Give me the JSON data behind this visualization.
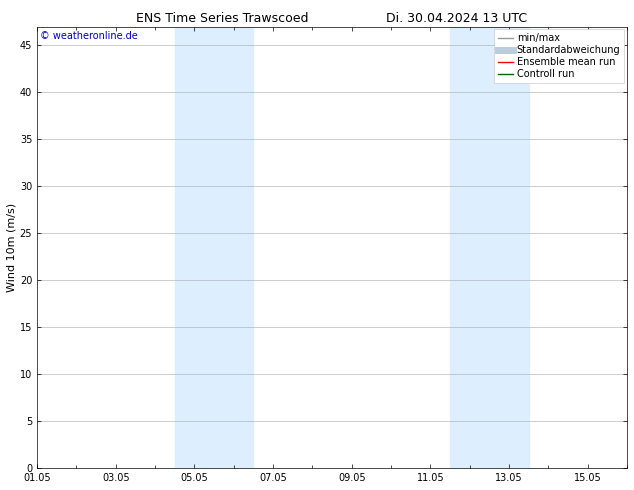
{
  "title_left": "ENS Time Series Trawscoed",
  "title_right": "Di. 30.04.2024 13 UTC",
  "ylabel": "Wind 10m (m/s)",
  "watermark": "© weatheronline.de",
  "watermark_color": "#0000cc",
  "ylim": [
    0,
    47
  ],
  "yticks": [
    0,
    5,
    10,
    15,
    20,
    25,
    30,
    35,
    40,
    45
  ],
  "xlim": [
    0,
    15
  ],
  "xtick_labels": [
    "01.05",
    "03.05",
    "05.05",
    "07.05",
    "09.05",
    "11.05",
    "13.05",
    "15.05"
  ],
  "xtick_positions": [
    0,
    2,
    4,
    6,
    8,
    10,
    12,
    14
  ],
  "background_color": "#ffffff",
  "plot_bg_color": "#ffffff",
  "shaded_bands": [
    {
      "start": 3.5,
      "end": 5.5,
      "color": "#ddeeff"
    },
    {
      "start": 10.5,
      "end": 12.5,
      "color": "#ddeeff"
    }
  ],
  "legend_items": [
    {
      "label": "min/max",
      "color": "#999999",
      "lw": 1.0
    },
    {
      "label": "Standardabweichung",
      "color": "#bbccdd",
      "lw": 5
    },
    {
      "label": "Ensemble mean run",
      "color": "#ff0000",
      "lw": 1.0
    },
    {
      "label": "Controll run",
      "color": "#006600",
      "lw": 1.0
    }
  ],
  "title_fontsize": 9,
  "ylabel_fontsize": 8,
  "tick_fontsize": 7,
  "watermark_fontsize": 7,
  "legend_fontsize": 7
}
